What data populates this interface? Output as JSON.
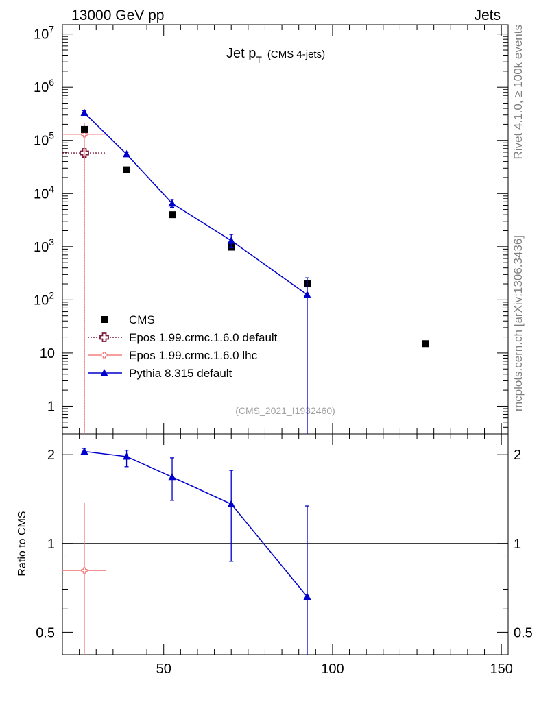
{
  "header": {
    "left": "13000 GeV pp",
    "right": "Jets",
    "side_top": "Rivet 4.1.0, ≥ 100k events",
    "side_bottom": "mcplots.cern.ch [arXiv:1306.3436]"
  },
  "chart_data": [
    {
      "type": "scatter",
      "panel": "main",
      "title": "Jet p",
      "title_sub": "T",
      "title_note": "(CMS 4-jets)",
      "watermark": "(CMS_2021_I1932460)",
      "yscale": "log",
      "xlim": [
        20,
        152
      ],
      "ylim": [
        0.3,
        15000000
      ],
      "ytick_labels": [
        "1",
        "10",
        "10^2",
        "10^3",
        "10^4",
        "10^5",
        "10^6",
        "10^7"
      ],
      "legend_position": "left",
      "series": [
        {
          "name": "CMS",
          "color": "#000000",
          "marker": "square",
          "points": [
            {
              "x": 26.5,
              "y": 160000
            },
            {
              "x": 39,
              "y": 28000
            },
            {
              "x": 52.5,
              "y": 4000
            },
            {
              "x": 70,
              "y": 980
            },
            {
              "x": 92.5,
              "y": 200
            },
            {
              "x": 127.5,
              "y": 15
            }
          ]
        },
        {
          "name": "Epos 1.99.crmc.1.6.0 default",
          "color": "#7b1b3e",
          "marker": "open-cross",
          "line": "dotted",
          "points": [
            {
              "x": 26.5,
              "y": 58000,
              "xerr": [
                20,
                33
              ],
              "yerr": [
                0.3,
                70000
              ]
            }
          ]
        },
        {
          "name": "Epos 1.99.crmc.1.6.0 lhc",
          "color": "#f08080",
          "marker": "open-cross-small",
          "points": [
            {
              "x": 26.5,
              "y": 130000,
              "xerr": [
                20,
                33
              ],
              "yerr": [
                0.3,
                210000
              ]
            }
          ]
        },
        {
          "name": "Pythia 8.315 default",
          "color": "#0000cc",
          "marker": "triangle",
          "line": "solid",
          "points": [
            {
              "x": 26.5,
              "y": 330000,
              "yerr": [
                300000,
                360000
              ]
            },
            {
              "x": 39,
              "y": 55000,
              "yerr": [
                50000,
                60000
              ]
            },
            {
              "x": 52.5,
              "y": 6500,
              "yerr": [
                5500,
                7800
              ]
            },
            {
              "x": 70,
              "y": 1300,
              "yerr": [
                950,
                1700
              ]
            },
            {
              "x": 92.5,
              "y": 125,
              "yerr": [
                0.3,
                260
              ]
            }
          ]
        }
      ]
    },
    {
      "type": "scatter",
      "panel": "ratio",
      "ylabel": "Ratio to CMS",
      "xlabel": "",
      "yscale": "log",
      "xlim": [
        20,
        152
      ],
      "ylim": [
        0.42,
        2.35
      ],
      "xtick_labels": [
        "50",
        "100",
        "150"
      ],
      "ytick_labels": [
        "0.5",
        "1",
        "2"
      ],
      "reference_line": 1,
      "series": [
        {
          "name": "Epos 1.99.crmc.1.6.0 lhc",
          "color": "#f08080",
          "marker": "open-cross-small",
          "points": [
            {
              "x": 26.5,
              "y": 0.81,
              "xerr": [
                20,
                33
              ],
              "yerr": [
                0.42,
                1.37
              ]
            }
          ]
        },
        {
          "name": "Pythia 8.315 default",
          "color": "#0000cc",
          "marker": "triangle",
          "line": "solid",
          "points": [
            {
              "x": 26.5,
              "y": 2.05,
              "yerr": [
                2.0,
                2.1
              ]
            },
            {
              "x": 39,
              "y": 1.97,
              "yerr": [
                1.82,
                2.07
              ]
            },
            {
              "x": 52.5,
              "y": 1.68,
              "yerr": [
                1.4,
                1.95
              ]
            },
            {
              "x": 70,
              "y": 1.36,
              "yerr": [
                0.87,
                1.77
              ]
            },
            {
              "x": 92.5,
              "y": 0.66,
              "yerr": [
                0.42,
                1.34
              ]
            }
          ]
        }
      ]
    }
  ]
}
